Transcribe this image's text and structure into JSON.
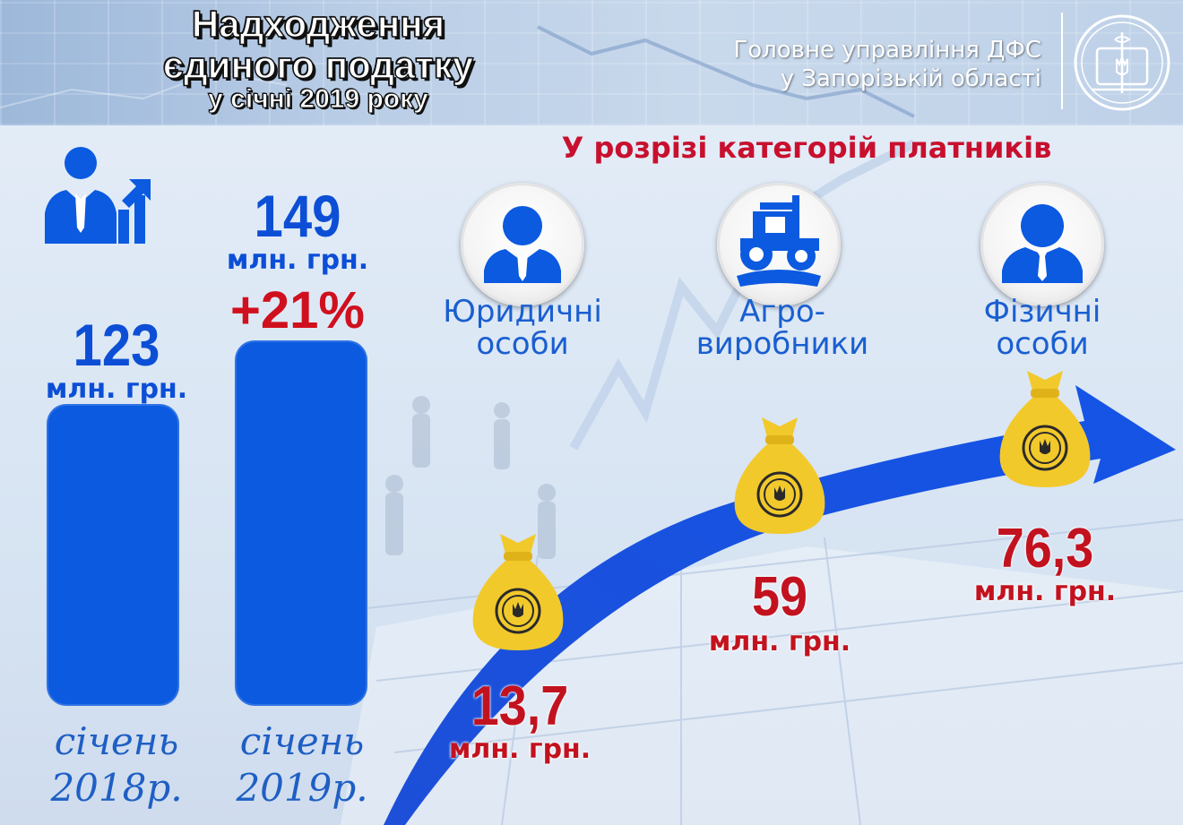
{
  "header": {
    "title_line1": "Надходження",
    "title_line2": "єдиного податку",
    "subtitle": "у січні 2019 року",
    "org_line1": "Головне управління ДФС",
    "org_line2": "у Запорізькій області"
  },
  "comparison": {
    "bar1": {
      "value": "123",
      "unit": "млн. грн.",
      "period_line1": "січень",
      "period_line2": "2018р."
    },
    "bar2": {
      "value": "149",
      "unit": "млн. грн.",
      "growth": "+21%",
      "period_line1": "січень",
      "period_line2": "2019р."
    }
  },
  "categories_section": {
    "title": "У розрізі категорій платників",
    "items": [
      {
        "label_line1": "Юридичні",
        "label_line2": "особи",
        "value": "13,7",
        "unit": "млн. грн."
      },
      {
        "label_line1": "Агро-",
        "label_line2": "виробники",
        "value": "59",
        "unit": "млн. грн."
      },
      {
        "label_line1": "Фізичні",
        "label_line2": "особи",
        "value": "76,3",
        "unit": "млн. грн."
      }
    ]
  },
  "colors": {
    "bar_blue": "#0b5ae0",
    "text_blue": "#0c4fd6",
    "accent_red": "#c3121f",
    "bag_yellow": "#f2c92b"
  },
  "icons": {
    "growth": "businessman-growth-chart-icon",
    "legal_entities": "businessman-icon",
    "agro": "tractor-icon",
    "individuals": "person-icon",
    "money_bag": "money-bag-icon",
    "emblem": "dfs-emblem-icon"
  },
  "chart_data": [
    {
      "type": "bar",
      "categories": [
        "січень 2018р.",
        "січень 2019р."
      ],
      "values": [
        123,
        149
      ],
      "value_labels": [
        "123 млн. грн.",
        "149 млн. грн."
      ],
      "annotations": [
        "+21%"
      ],
      "title": "Надходження єдиного податку у січні 2019 року",
      "ylim": [
        0,
        149
      ]
    },
    {
      "type": "bar",
      "title": "У розрізі категорій платників",
      "categories": [
        "Юридичні особи",
        "Агровиробники",
        "Фізичні особи"
      ],
      "values": [
        13.7,
        59,
        76.3
      ],
      "value_labels": [
        "13,7 млн. грн.",
        "59 млн. грн.",
        "76,3 млн. грн."
      ]
    }
  ]
}
